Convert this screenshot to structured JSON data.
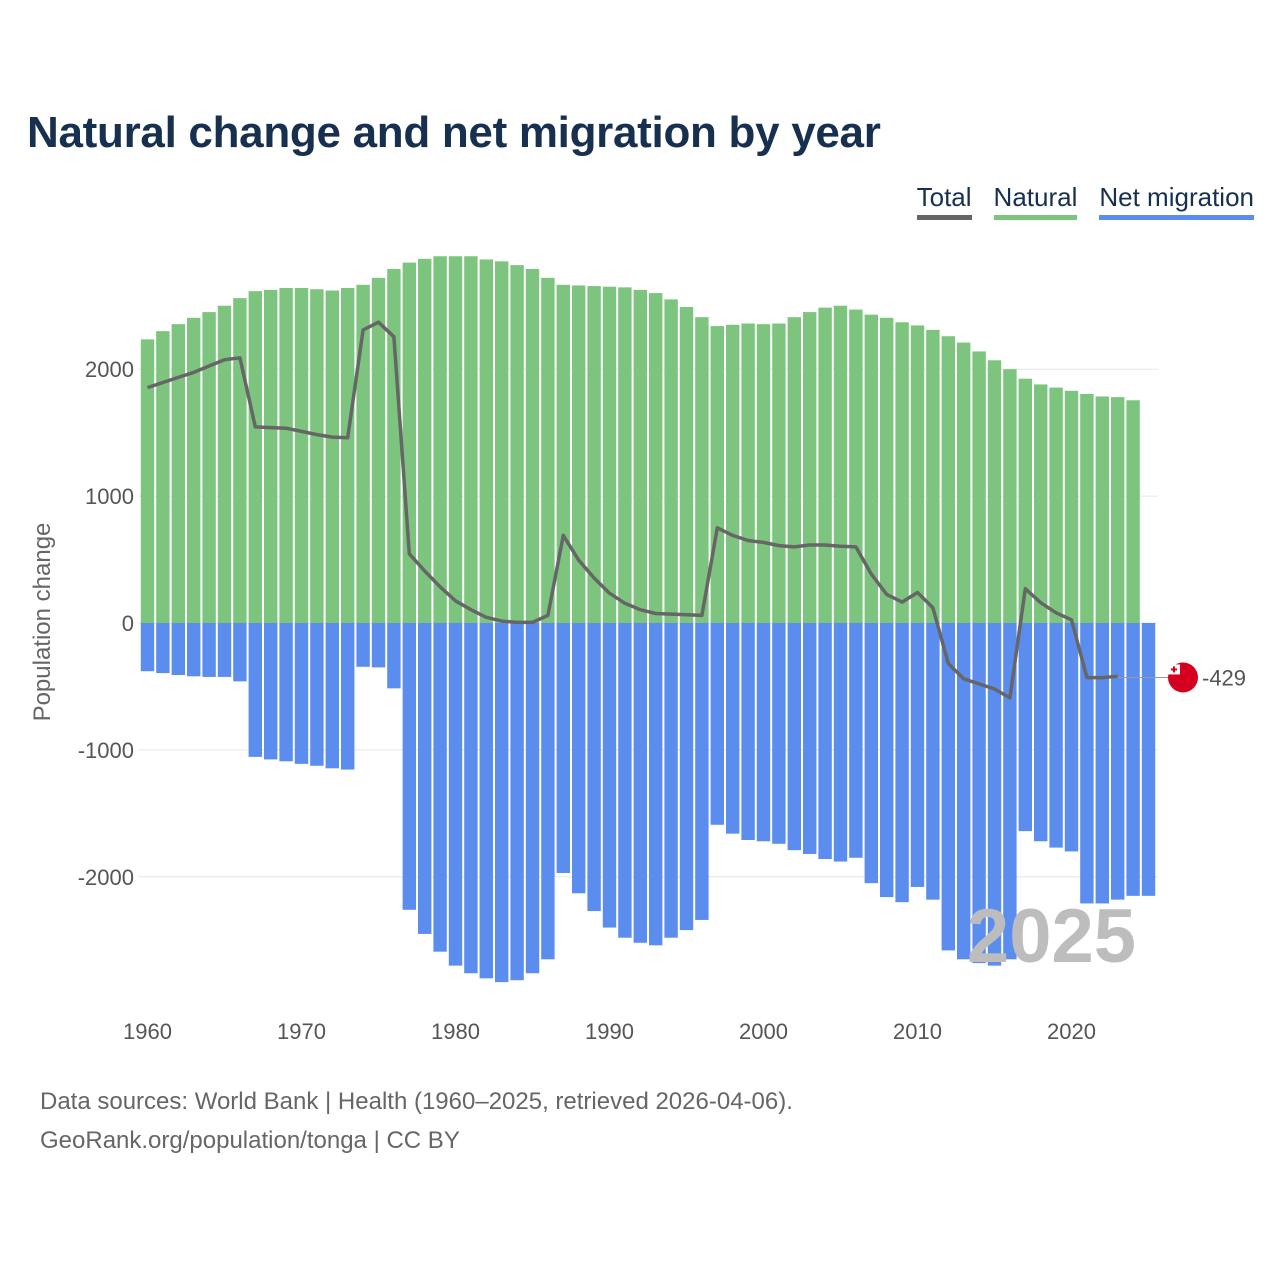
{
  "title": "Natural change and net migration by year",
  "legend": {
    "total": "Total",
    "natural": "Natural",
    "migration": "Net migration"
  },
  "colors": {
    "natural": "#7dc47f",
    "migration": "#5b8def",
    "total": "#666666",
    "grid": "#e6e6e6",
    "title": "#17304f",
    "flag_red": "#d5001f"
  },
  "footer": {
    "sources": "Data sources: World Bank | Health (1960–2025, retrieved 2026-04-06).",
    "credit": "GeoRank.org/population/tonga | CC BY"
  },
  "chart_data": {
    "type": "bar",
    "ylabel": "Population change",
    "ylim": [
      -2900,
      2900
    ],
    "yticks": [
      2000,
      1000,
      0,
      -1000,
      -2000
    ],
    "ytick_labels": [
      "2000",
      "1000",
      "0",
      "-1000",
      "-2000"
    ],
    "xticks": [
      1960,
      1970,
      1980,
      1990,
      2000,
      2010,
      2020
    ],
    "xtick_labels": [
      "1960",
      "1970",
      "1980",
      "1990",
      "2000",
      "2010",
      "2020"
    ],
    "year_label": "2025",
    "end_value_label": "-429",
    "years": [
      1960,
      1961,
      1962,
      1963,
      1964,
      1965,
      1966,
      1967,
      1968,
      1969,
      1970,
      1971,
      1972,
      1973,
      1974,
      1975,
      1976,
      1977,
      1978,
      1979,
      1980,
      1981,
      1982,
      1983,
      1984,
      1985,
      1986,
      1987,
      1988,
      1989,
      1990,
      1991,
      1992,
      1993,
      1994,
      1995,
      1996,
      1997,
      1998,
      1999,
      2000,
      2001,
      2002,
      2003,
      2004,
      2005,
      2006,
      2007,
      2008,
      2009,
      2010,
      2011,
      2012,
      2013,
      2014,
      2015,
      2016,
      2017,
      2018,
      2019,
      2020,
      2021,
      2022,
      2023,
      2024,
      2025
    ],
    "series": [
      {
        "name": "Natural",
        "values": [
          2235,
          2300,
          2355,
          2405,
          2450,
          2500,
          2560,
          2615,
          2625,
          2640,
          2640,
          2630,
          2620,
          2640,
          2665,
          2720,
          2790,
          2840,
          2870,
          2890,
          2890,
          2890,
          2865,
          2850,
          2820,
          2790,
          2720,
          2665,
          2660,
          2655,
          2650,
          2645,
          2625,
          2600,
          2550,
          2490,
          2410,
          2340,
          2350,
          2360,
          2355,
          2360,
          2410,
          2450,
          2485,
          2500,
          2470,
          2430,
          2405,
          2370,
          2345,
          2310,
          2260,
          2210,
          2140,
          2070,
          2000,
          1925,
          1880,
          1855,
          1830,
          1805,
          1785,
          1780,
          1755,
          null
        ]
      },
      {
        "name": "Net migration",
        "values": [
          -380,
          -395,
          -410,
          -420,
          -425,
          -425,
          -460,
          -1055,
          -1075,
          -1090,
          -1110,
          -1125,
          -1145,
          -1155,
          -345,
          -350,
          -515,
          -2260,
          -2450,
          -2590,
          -2700,
          -2760,
          -2800,
          -2830,
          -2815,
          -2760,
          -2650,
          -1970,
          -2130,
          -2270,
          -2400,
          -2480,
          -2520,
          -2540,
          -2480,
          -2420,
          -2340,
          -1590,
          -1660,
          -1710,
          -1720,
          -1740,
          -1790,
          -1820,
          -1860,
          -1880,
          -1850,
          -2050,
          -2160,
          -2200,
          -2080,
          -2180,
          -2580,
          -2650,
          -2680,
          -2700,
          -2650,
          -1640,
          -1720,
          -1770,
          -1800,
          -2210,
          -2210,
          -2180,
          -2150,
          -2150
        ]
      },
      {
        "name": "Total",
        "values": [
          1855,
          1895,
          1935,
          1975,
          2025,
          2075,
          2090,
          1545,
          1540,
          1535,
          1510,
          1485,
          1465,
          1460,
          2310,
          2370,
          2255,
          545,
          410,
          285,
          175,
          105,
          45,
          15,
          5,
          5,
          60,
          690,
          495,
          355,
          235,
          155,
          105,
          75,
          70,
          65,
          60,
          750,
          690,
          650,
          635,
          610,
          600,
          615,
          615,
          605,
          600,
          385,
          225,
          165,
          240,
          120,
          -320,
          -440,
          -480,
          -520,
          -590,
          270,
          160,
          80,
          25,
          -430,
          -430,
          -420,
          -429,
          -429
        ]
      }
    ]
  }
}
